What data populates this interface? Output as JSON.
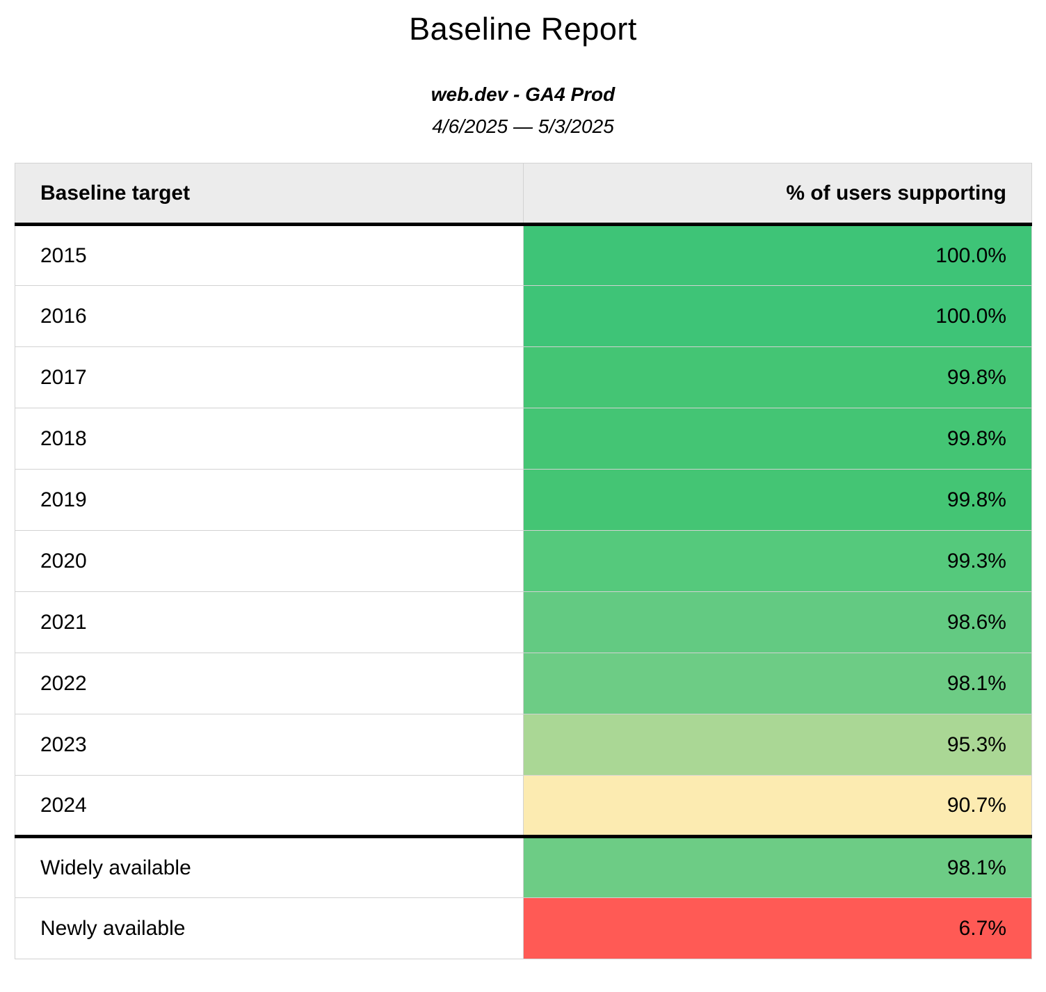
{
  "header": {
    "title": "Baseline Report",
    "subtitle": "web.dev - GA4 Prod",
    "date_range": "4/6/2025 — 5/3/2025"
  },
  "table": {
    "columns": [
      {
        "label": "Baseline target"
      },
      {
        "label": "% of users supporting"
      }
    ],
    "header_bg": "#ececec",
    "grid_border_color": "#d2d2d2",
    "section_border_color": "#000000",
    "rows": [
      {
        "label": "2015",
        "value": "100.0%",
        "color": "#3ec477",
        "section_start": false
      },
      {
        "label": "2016",
        "value": "100.0%",
        "color": "#3ec477",
        "section_start": false
      },
      {
        "label": "2017",
        "value": "99.8%",
        "color": "#44c574",
        "section_start": false
      },
      {
        "label": "2018",
        "value": "99.8%",
        "color": "#44c574",
        "section_start": false
      },
      {
        "label": "2019",
        "value": "99.8%",
        "color": "#44c574",
        "section_start": false
      },
      {
        "label": "2020",
        "value": "99.3%",
        "color": "#55c97c",
        "section_start": false
      },
      {
        "label": "2021",
        "value": "98.6%",
        "color": "#63ca82",
        "section_start": false
      },
      {
        "label": "2022",
        "value": "98.1%",
        "color": "#6dcc85",
        "section_start": false
      },
      {
        "label": "2023",
        "value": "95.3%",
        "color": "#aad795",
        "section_start": false
      },
      {
        "label": "2024",
        "value": "90.7%",
        "color": "#fcebb1",
        "section_start": false
      },
      {
        "label": "Widely available",
        "value": "98.1%",
        "color": "#6dcc85",
        "section_start": true
      },
      {
        "label": "Newly available",
        "value": "6.7%",
        "color": "#ff5a55",
        "section_start": false
      }
    ]
  },
  "chart_data": {
    "type": "table",
    "title": "Baseline Report",
    "subtitle": "web.dev - GA4 Prod",
    "date_range": "4/6/2025 — 5/3/2025",
    "columns": [
      "Baseline target",
      "% of users supporting"
    ],
    "rows": [
      [
        "2015",
        100.0
      ],
      [
        "2016",
        100.0
      ],
      [
        "2017",
        99.8
      ],
      [
        "2018",
        99.8
      ],
      [
        "2019",
        99.8
      ],
      [
        "2020",
        99.3
      ],
      [
        "2021",
        98.6
      ],
      [
        "2022",
        98.1
      ],
      [
        "2023",
        95.3
      ],
      [
        "2024",
        90.7
      ],
      [
        "Widely available",
        98.1
      ],
      [
        "Newly available",
        6.7
      ]
    ],
    "value_color_scale": "red-yellow-green"
  }
}
